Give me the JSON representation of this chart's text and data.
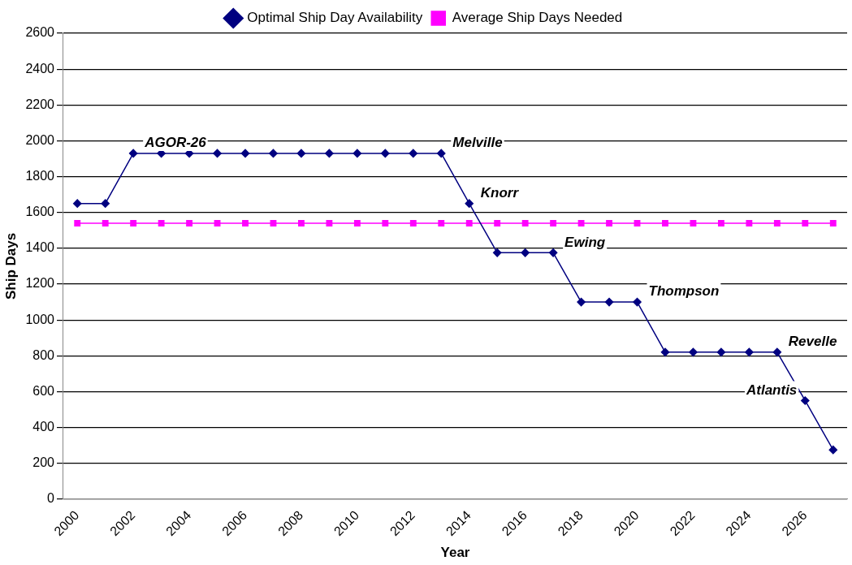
{
  "chart_data": {
    "type": "line",
    "xlabel": "Year",
    "ylabel": "Ship Days",
    "x": [
      2000,
      2001,
      2002,
      2003,
      2004,
      2005,
      2006,
      2007,
      2008,
      2009,
      2010,
      2011,
      2012,
      2013,
      2014,
      2015,
      2016,
      2017,
      2018,
      2019,
      2020,
      2021,
      2022,
      2023,
      2024,
      2025,
      2026,
      2027
    ],
    "series": [
      {
        "name": "Optimal Ship Day Availability",
        "color": "#000080",
        "marker": "diamond",
        "values": [
          1650,
          1650,
          1930,
          1930,
          1930,
          1930,
          1930,
          1930,
          1930,
          1930,
          1930,
          1930,
          1930,
          1930,
          1650,
          1375,
          1375,
          1375,
          1100,
          1100,
          1100,
          820,
          820,
          820,
          820,
          820,
          550,
          275
        ]
      },
      {
        "name": "Average Ship Days Needed",
        "color": "#ff00ff",
        "marker": "square",
        "values": [
          1540,
          1540,
          1540,
          1540,
          1540,
          1540,
          1540,
          1540,
          1540,
          1540,
          1540,
          1540,
          1540,
          1540,
          1540,
          1540,
          1540,
          1540,
          1540,
          1540,
          1540,
          1540,
          1540,
          1540,
          1540,
          1540,
          1540,
          1540
        ]
      }
    ],
    "xlim": [
      1999.5,
      2027.5
    ],
    "xticks": [
      2000,
      2002,
      2004,
      2006,
      2008,
      2010,
      2012,
      2014,
      2016,
      2018,
      2020,
      2022,
      2024,
      2026
    ],
    "ylim": [
      0,
      2600
    ],
    "yticks": [
      0,
      200,
      400,
      600,
      800,
      1000,
      1200,
      1400,
      1600,
      1800,
      2000,
      2200,
      2400,
      2600
    ],
    "grid": "y",
    "legend": "top",
    "line_style": "solid",
    "annotations": [
      {
        "text": "AGOR-26",
        "x": 2002,
        "y": 1930
      },
      {
        "text": "Melville",
        "x": 2013,
        "y": 1930
      },
      {
        "text": "Knorr",
        "x": 2014,
        "y": 1650
      },
      {
        "text": "Ewing",
        "x": 2017,
        "y": 1375
      },
      {
        "text": "Thompson",
        "x": 2020,
        "y": 1100
      },
      {
        "text": "Revelle",
        "x": 2025,
        "y": 820
      },
      {
        "text": "Atlantis",
        "x": 2026,
        "y": 550
      }
    ]
  }
}
